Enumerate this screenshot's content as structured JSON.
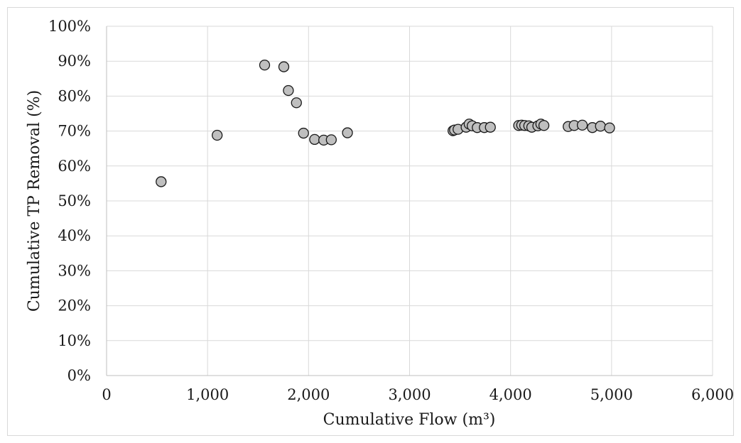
{
  "chart_data": {
    "type": "scatter",
    "title": "",
    "xlabel": "Cumulative Flow (m³)",
    "ylabel": "Cumulative TP Removal (%)",
    "xlim": [
      0,
      6000
    ],
    "ylim": [
      0,
      100
    ],
    "x_ticks": [
      0,
      1000,
      2000,
      3000,
      4000,
      5000,
      6000
    ],
    "x_tick_labels": [
      "0",
      "1,000",
      "2,000",
      "3,000",
      "4,000",
      "5,000",
      "6,000"
    ],
    "y_ticks": [
      0,
      10,
      20,
      30,
      40,
      50,
      60,
      70,
      80,
      90,
      100
    ],
    "y_tick_labels": [
      "0%",
      "10%",
      "20%",
      "30%",
      "40%",
      "50%",
      "60%",
      "70%",
      "80%",
      "90%",
      "100%"
    ],
    "grid": true,
    "legend": "none",
    "marker_color": "#bfbfbf",
    "marker_edge_color": "#1a1a1a",
    "points": [
      {
        "x": 540,
        "y": 55.5
      },
      {
        "x": 1095,
        "y": 68.8
      },
      {
        "x": 1565,
        "y": 88.9
      },
      {
        "x": 1755,
        "y": 88.4
      },
      {
        "x": 1800,
        "y": 81.6
      },
      {
        "x": 1880,
        "y": 78.1
      },
      {
        "x": 1950,
        "y": 69.4
      },
      {
        "x": 2060,
        "y": 67.6
      },
      {
        "x": 2150,
        "y": 67.4
      },
      {
        "x": 2225,
        "y": 67.5
      },
      {
        "x": 2385,
        "y": 69.5
      },
      {
        "x": 3430,
        "y": 70.1
      },
      {
        "x": 3445,
        "y": 70.3
      },
      {
        "x": 3480,
        "y": 70.5
      },
      {
        "x": 3560,
        "y": 71.1
      },
      {
        "x": 3590,
        "y": 72.0
      },
      {
        "x": 3620,
        "y": 71.5
      },
      {
        "x": 3670,
        "y": 71.0
      },
      {
        "x": 3740,
        "y": 71.0
      },
      {
        "x": 3800,
        "y": 71.1
      },
      {
        "x": 4080,
        "y": 71.6
      },
      {
        "x": 4110,
        "y": 71.7
      },
      {
        "x": 4140,
        "y": 71.6
      },
      {
        "x": 4180,
        "y": 71.5
      },
      {
        "x": 4210,
        "y": 71.1
      },
      {
        "x": 4270,
        "y": 71.5
      },
      {
        "x": 4300,
        "y": 72.0
      },
      {
        "x": 4330,
        "y": 71.6
      },
      {
        "x": 4570,
        "y": 71.3
      },
      {
        "x": 4630,
        "y": 71.6
      },
      {
        "x": 4710,
        "y": 71.7
      },
      {
        "x": 4810,
        "y": 71.0
      },
      {
        "x": 4890,
        "y": 71.4
      },
      {
        "x": 4980,
        "y": 70.9
      }
    ]
  }
}
